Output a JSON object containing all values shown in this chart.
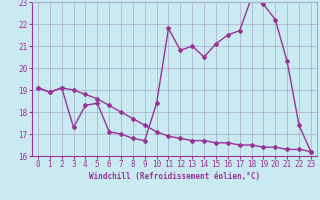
{
  "xlabel": "Windchill (Refroidissement éolien,°C)",
  "bg_color": "#c8eaf0",
  "grid_color": "#aaaacc",
  "line_color": "#993399",
  "xlim": [
    -0.5,
    23.5
  ],
  "ylim": [
    16,
    23
  ],
  "yticks": [
    16,
    17,
    18,
    19,
    20,
    21,
    22,
    23
  ],
  "xticks": [
    0,
    1,
    2,
    3,
    4,
    5,
    6,
    7,
    8,
    9,
    10,
    11,
    12,
    13,
    14,
    15,
    16,
    17,
    18,
    19,
    20,
    21,
    22,
    23
  ],
  "line1_x": [
    0,
    1,
    2,
    3,
    4,
    5,
    6,
    7,
    8,
    9,
    10,
    11,
    12,
    13,
    14,
    15,
    16,
    17,
    18,
    19,
    20,
    21,
    22,
    23
  ],
  "line1_y": [
    19.1,
    18.9,
    19.1,
    17.3,
    18.3,
    18.4,
    17.1,
    17.0,
    16.8,
    16.7,
    18.4,
    21.8,
    20.8,
    21.0,
    20.5,
    21.1,
    21.5,
    21.7,
    23.2,
    22.9,
    22.2,
    20.3,
    17.4,
    16.2
  ],
  "line2_x": [
    0,
    1,
    2,
    3,
    4,
    5,
    6,
    7,
    8,
    9,
    10,
    11,
    12,
    13,
    14,
    15,
    16,
    17,
    18,
    19,
    20,
    21,
    22,
    23
  ],
  "line2_y": [
    19.1,
    18.9,
    19.1,
    19.0,
    18.8,
    18.6,
    18.3,
    18.0,
    17.7,
    17.4,
    17.1,
    16.9,
    16.8,
    16.7,
    16.7,
    16.6,
    16.6,
    16.5,
    16.5,
    16.4,
    16.4,
    16.3,
    16.3,
    16.2
  ],
  "marker": "D",
  "marker_size": 2,
  "line_width": 1.0,
  "tick_fontsize": 5.5,
  "xlabel_fontsize": 5.5
}
